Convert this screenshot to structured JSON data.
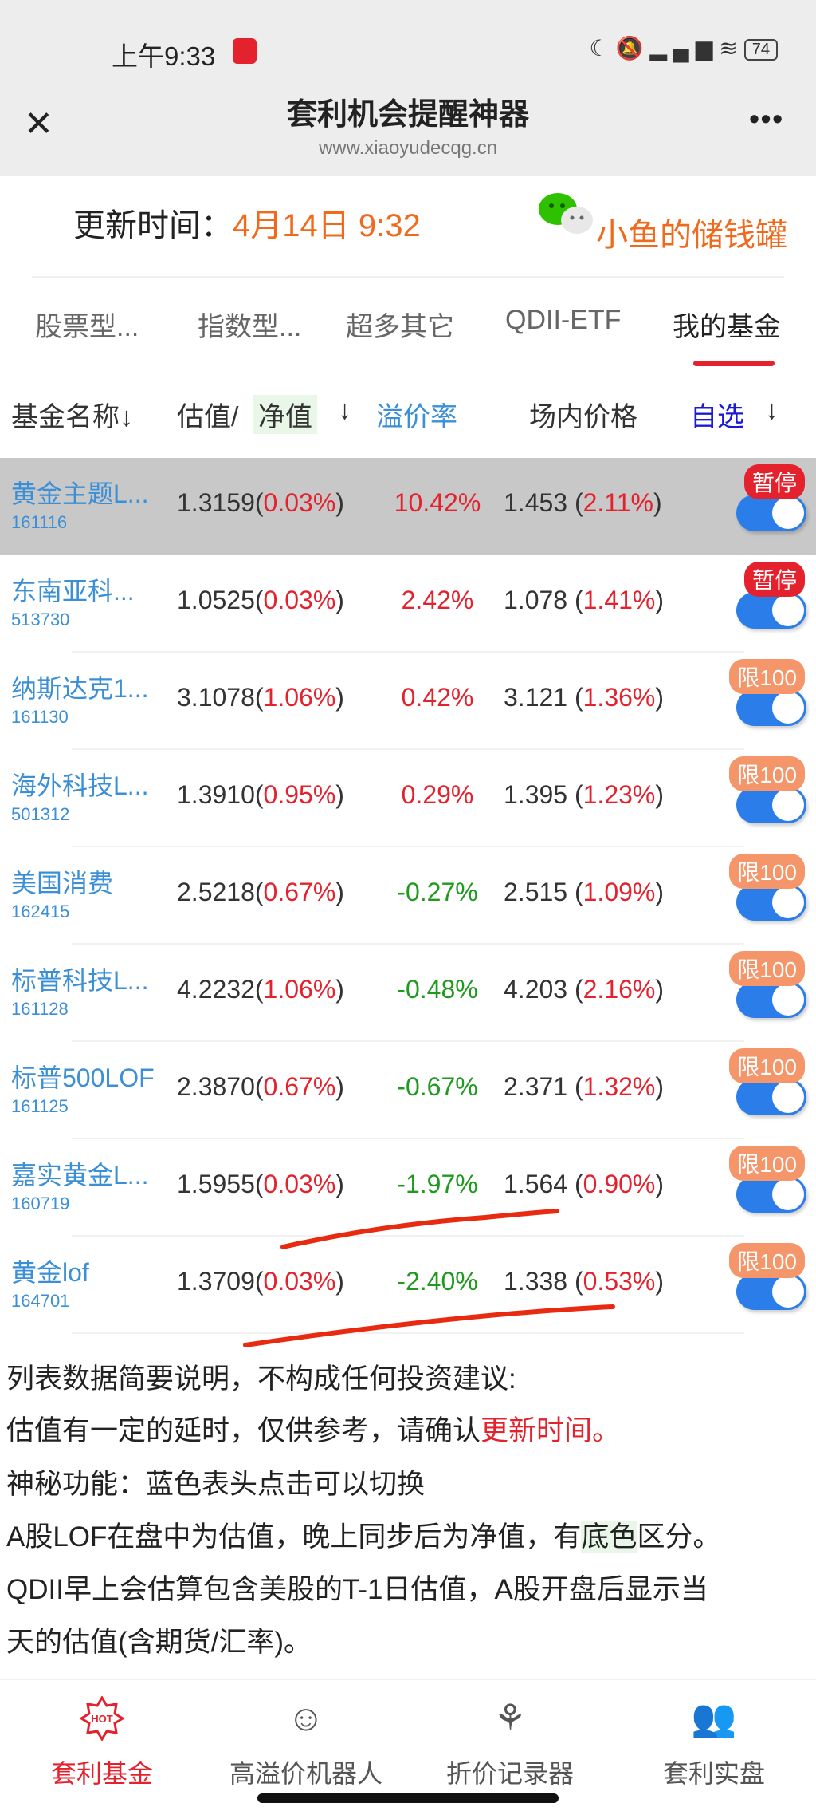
{
  "status_bar": {
    "time": "上午9:33",
    "battery": "74",
    "icons": [
      "moon-icon",
      "mute-icon",
      "signal-icon",
      "wifi-icon",
      "battery-icon"
    ]
  },
  "header": {
    "title": "套利机会提醒神器",
    "url": "www.xiaoyudecqg.cn",
    "close_icon": "close-icon",
    "more_icon": "more-icon"
  },
  "update": {
    "label": "更新时间：",
    "time": "4月14日 9:32",
    "brand": "小鱼的储钱罐"
  },
  "tabs": [
    {
      "label": "股票型..."
    },
    {
      "label": "指数型..."
    },
    {
      "label": "超多其它"
    },
    {
      "label": "QDII-ETF"
    },
    {
      "label": "我的基金",
      "active": true
    }
  ],
  "columns": {
    "name": "基金名称↓",
    "est": "估值/",
    "nav": "净值",
    "nav_arrow": "↓",
    "premium": "溢价率",
    "market": "场内价格",
    "watch": "自选",
    "watch_arrow": "↓"
  },
  "rows": [
    {
      "name": "黄金主题L...",
      "code": "161116",
      "est": "1.3159",
      "est_chg": "0.03%",
      "premium": "10.42%",
      "price": "1.453",
      "price_chg": "2.11%",
      "badge": "暂停",
      "highlight": true
    },
    {
      "name": "东南亚科...",
      "code": "513730",
      "est": "1.0525",
      "est_chg": "0.03%",
      "premium": "2.42%",
      "price": "1.078",
      "price_chg": "1.41%",
      "badge": "暂停"
    },
    {
      "name": "纳斯达克1...",
      "code": "161130",
      "est": "3.1078",
      "est_chg": "1.06%",
      "premium": "0.42%",
      "price": "3.121",
      "price_chg": "1.36%",
      "badge": "限100"
    },
    {
      "name": "海外科技L...",
      "code": "501312",
      "est": "1.3910",
      "est_chg": "0.95%",
      "premium": "0.29%",
      "price": "1.395",
      "price_chg": "1.23%",
      "badge": "限100"
    },
    {
      "name": "美国消费",
      "code": "162415",
      "est": "2.5218",
      "est_chg": "0.67%",
      "premium": "-0.27%",
      "price": "2.515",
      "price_chg": "1.09%",
      "badge": "限100"
    },
    {
      "name": "标普科技L...",
      "code": "161128",
      "est": "4.2232",
      "est_chg": "1.06%",
      "premium": "-0.48%",
      "price": "4.203",
      "price_chg": "2.16%",
      "badge": "限100"
    },
    {
      "name": "标普500LOF",
      "code": "161125",
      "est": "2.3870",
      "est_chg": "0.67%",
      "premium": "-0.67%",
      "price": "2.371",
      "price_chg": "1.32%",
      "badge": "限100"
    },
    {
      "name": "嘉实黄金L...",
      "code": "160719",
      "est": "1.5955",
      "est_chg": "0.03%",
      "premium": "-1.97%",
      "price": "1.564",
      "price_chg": "0.90%",
      "badge": "限100"
    },
    {
      "name": "黄金lof",
      "code": "164701",
      "est": "1.3709",
      "est_chg": "0.03%",
      "premium": "-2.40%",
      "price": "1.338",
      "price_chg": "0.53%",
      "badge": "限100"
    }
  ],
  "notes": {
    "line1": "列表数据简要说明，不构成任何投资建议:",
    "line2a": "估值有一定的延时，仅供参考，请确认",
    "line2b": "更新时间。",
    "line3": "神秘功能：蓝色表头点击可以切换",
    "line4a": "A股LOF在盘中为估值，晚上同步后为净值，有",
    "line4b": "底色",
    "line4c": "区分。",
    "line5": "QDII早上会估算包含美股的T-1日估值，A股开盘后显示当",
    "line6": "天的估值(含期货/汇率)。"
  },
  "nav": [
    {
      "label": "套利基金",
      "icon": "hot-icon",
      "active": true
    },
    {
      "label": "高溢价机器人",
      "icon": "smiley-icon"
    },
    {
      "label": "折价记录器",
      "icon": "tulip-icon"
    },
    {
      "label": "套利实盘",
      "icon": "users-icon"
    }
  ],
  "colors": {
    "accent": "#e4222d",
    "orange": "#f06a1c",
    "blue": "#3b8fd6",
    "toggle": "#2b7de9",
    "badge_pause": "#e4222d",
    "badge_limit": "#f5956a",
    "up": "#e4222d",
    "down": "#1f9a1f"
  }
}
